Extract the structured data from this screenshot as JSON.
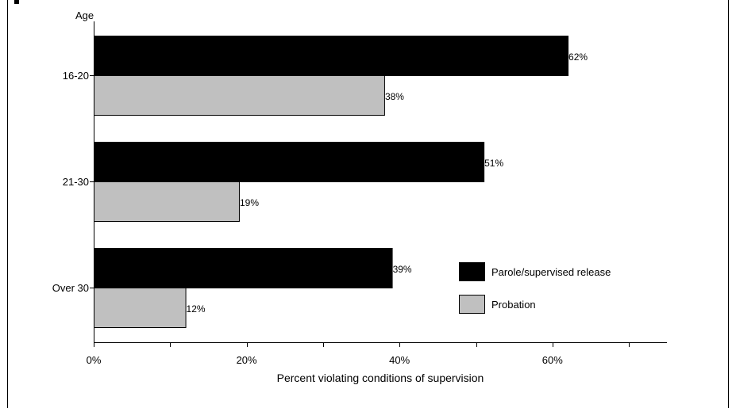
{
  "chart_data": {
    "type": "bar",
    "orientation": "horizontal",
    "y_axis_title": "Age",
    "xlabel": "Percent violating conditions of supervision",
    "categories": [
      "16-20",
      "21-30",
      "Over 30"
    ],
    "series": [
      {
        "name": "Parole/supervised release",
        "values": [
          62,
          51,
          39
        ],
        "labels": [
          "62%",
          "51%",
          "39%"
        ],
        "color": "#000000"
      },
      {
        "name": "Probation",
        "values": [
          38,
          19,
          12
        ],
        "labels": [
          "38%",
          "19%",
          "12%"
        ],
        "color": "#c0c0c0"
      }
    ],
    "xlim": [
      0,
      75
    ],
    "x_ticks": [
      0,
      10,
      20,
      30,
      40,
      50,
      60,
      70
    ],
    "x_tick_labels": [
      {
        "value": 0,
        "label": "0%"
      },
      {
        "value": 20,
        "label": "20%"
      },
      {
        "value": 40,
        "label": "40%"
      },
      {
        "value": 60,
        "label": "60%"
      }
    ],
    "legend_position": "right",
    "grid": false
  }
}
